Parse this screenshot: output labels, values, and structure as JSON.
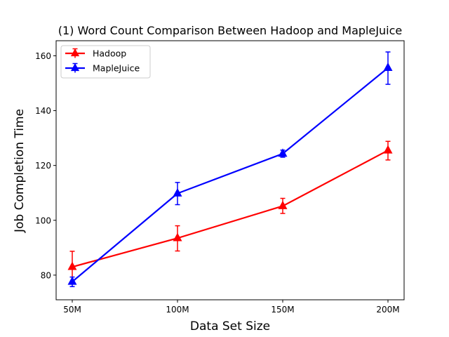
{
  "chart_data": {
    "type": "line",
    "title": "(1) Word Count Comparison Between Hadoop and MapleJuice",
    "xlabel": "Data Set Size",
    "ylabel": "Job Completion Time",
    "categories": [
      "50M",
      "100M",
      "150M",
      "200M"
    ],
    "ylim": [
      71,
      165.5
    ],
    "yticks": [
      80,
      100,
      120,
      140,
      160
    ],
    "grid": false,
    "legend_position": "top-left",
    "series": [
      {
        "name": "Hadoop",
        "color": "#ff0000",
        "marker": "triangle",
        "values": [
          83.0,
          93.5,
          105.2,
          125.5
        ],
        "error_low": [
          77.5,
          88.8,
          102.5,
          122.0
        ],
        "error_high": [
          88.7,
          98.0,
          108.0,
          128.8
        ]
      },
      {
        "name": "MapleJuice",
        "color": "#0000ff",
        "marker": "triangle",
        "values": [
          77.6,
          109.8,
          124.3,
          155.6
        ],
        "error_low": [
          75.8,
          105.7,
          123.0,
          149.6
        ],
        "error_high": [
          79.3,
          113.8,
          125.6,
          161.4
        ]
      }
    ]
  }
}
